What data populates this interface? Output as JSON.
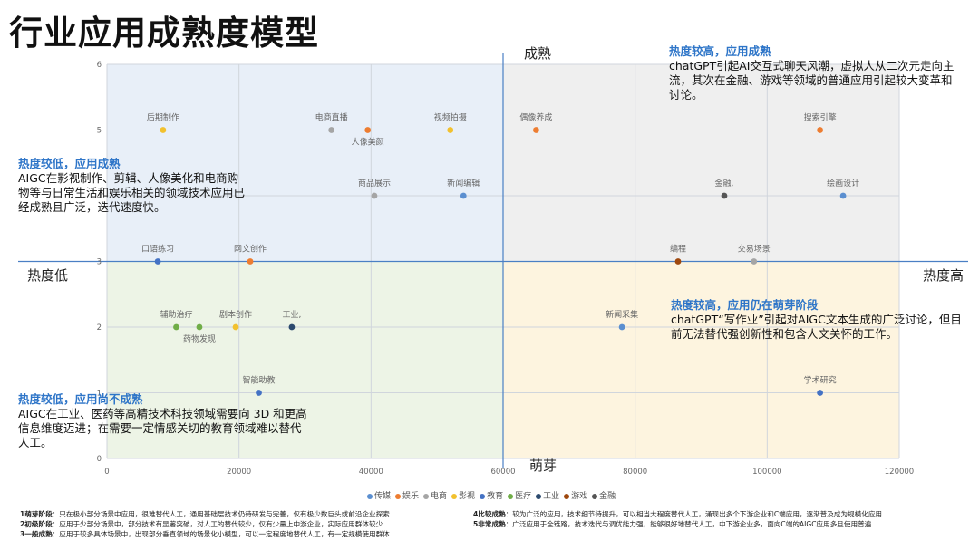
{
  "title": "行业应用成熟度模型",
  "quadrant_labels": {
    "top": "成熟",
    "bottom": "萌芽",
    "left": "热度低",
    "right": "热度高"
  },
  "notes": {
    "top_left": {
      "head": "热度较低，应用成熟",
      "body": "AIGC在影视制作、剪辑、人像美化和电商购物等与日常生活和娱乐相关的领域技术应用已经成熟且广泛，迭代速度快。"
    },
    "top_right": {
      "head": "热度较高，应用成熟",
      "body": "chatGPT引起AI交互式聊天风潮，虚拟人从二次元走向主流，其次在金融、游戏等领域的普通应用引起较大变革和讨论。"
    },
    "bottom_left": {
      "head": "热度较低，应用尚不成熟",
      "body": "AIGC在工业、医药等高精技术科技领域需要向 3D 和更高信息维度迈进；在需要一定情感关切的教育领域难以替代人工。"
    },
    "bottom_right": {
      "head": "热度较高，应用仍在萌芽阶段",
      "body": "chatGPT“写作业”引起对AIGC文本生成的广泛讨论，但目前无法替代强创新性和包含人文关怀的工作。"
    }
  },
  "footer": {
    "left": [
      {
        "head": "1萌芽阶段",
        "text": "：只在极小部分场景中应用，很难替代人工，通用基础层技术仍待研发与完善，仅有极少数巨头或前沿企业探索"
      },
      {
        "head": "2初级阶段",
        "text": "：应用于少部分场景中，部分技术有显著突破，对人工的替代较少，仅有少量上中游企业，实际应用群体较少"
      },
      {
        "head": "3一般成熟",
        "text": "：应用于较多具体场景中，出现部分垂直领域的场景化小模型，可以一定程度地替代人工，有一定规模使用群体"
      }
    ],
    "right": [
      {
        "head": "4比较成熟",
        "text": "：较为广泛的应用，技术细节待提升，可以相当大程度替代人工，涌现出多个下游企业和C端应用，逐渐普及成为规模化应用"
      },
      {
        "head": "5非常成熟",
        "text": "：广泛应用于全链路，技术迭代与调优能力强，能够很好地替代人工，中下游企业多，面向C端的AIGC应用多且使用普遍"
      }
    ]
  },
  "chart_data": {
    "type": "scatter",
    "title": "行业应用成熟度模型",
    "xlabel": "",
    "ylabel": "",
    "xlim": [
      0,
      120000
    ],
    "ylim": [
      0,
      6
    ],
    "x_ticks": [
      0,
      20000,
      40000,
      60000,
      80000,
      100000,
      120000
    ],
    "y_ticks": [
      0,
      1,
      2,
      3,
      4,
      5,
      6
    ],
    "quadrant_split": {
      "x": 60000,
      "y": 3
    },
    "legend": [
      {
        "name": "传媒",
        "color": "#5b8fd0"
      },
      {
        "name": "娱乐",
        "color": "#ed7d31"
      },
      {
        "name": "电商",
        "color": "#a5a5a5"
      },
      {
        "name": "影视",
        "color": "#f2c12e"
      },
      {
        "name": "教育",
        "color": "#4472c4"
      },
      {
        "name": "医疗",
        "color": "#70ad47"
      },
      {
        "name": "工业",
        "color": "#2c4a6e"
      },
      {
        "name": "游戏",
        "color": "#9e480e"
      },
      {
        "name": "金融",
        "color": "#555555"
      }
    ],
    "points": [
      {
        "label": "后期制作",
        "x": 8500,
        "y": 5,
        "series": "影视"
      },
      {
        "label": "电商直播",
        "x": 34000,
        "y": 5,
        "series": "电商"
      },
      {
        "label": "人像美颜",
        "x": 39500,
        "y": 5,
        "series": "娱乐"
      },
      {
        "label": "视频拍摄",
        "x": 52000,
        "y": 5,
        "series": "影视"
      },
      {
        "label": "偶像养成",
        "x": 65000,
        "y": 5,
        "series": "娱乐"
      },
      {
        "label": "搜索引擎",
        "x": 108000,
        "y": 5,
        "series": "娱乐"
      },
      {
        "label": "商品展示",
        "x": 40500,
        "y": 4,
        "series": "电商"
      },
      {
        "label": "新闻编辑",
        "x": 54000,
        "y": 4,
        "series": "传媒"
      },
      {
        "label": "金融,",
        "x": 93500,
        "y": 4,
        "series": "金融"
      },
      {
        "label": "绘画设计",
        "x": 111500,
        "y": 4,
        "series": "传媒"
      },
      {
        "label": "口语练习",
        "x": 7700,
        "y": 3,
        "series": "教育"
      },
      {
        "label": "网文创作",
        "x": 21700,
        "y": 3,
        "series": "娱乐"
      },
      {
        "label": "编程",
        "x": 86500,
        "y": 3,
        "series": "游戏"
      },
      {
        "label": "交易场景",
        "x": 98000,
        "y": 3,
        "series": "电商"
      },
      {
        "label": "辅助治疗",
        "x": 10500,
        "y": 2,
        "series": "医疗"
      },
      {
        "label": "药物发现",
        "x": 14000,
        "y": 2,
        "series": "医疗"
      },
      {
        "label": "剧本创作",
        "x": 19500,
        "y": 2,
        "series": "影视"
      },
      {
        "label": "工业,",
        "x": 28000,
        "y": 2,
        "series": "工业"
      },
      {
        "label": "新闻采集",
        "x": 78000,
        "y": 2,
        "series": "传媒"
      },
      {
        "label": "智能助教",
        "x": 23000,
        "y": 1,
        "series": "教育"
      },
      {
        "label": "学术研究",
        "x": 108000,
        "y": 1,
        "series": "教育"
      }
    ]
  }
}
